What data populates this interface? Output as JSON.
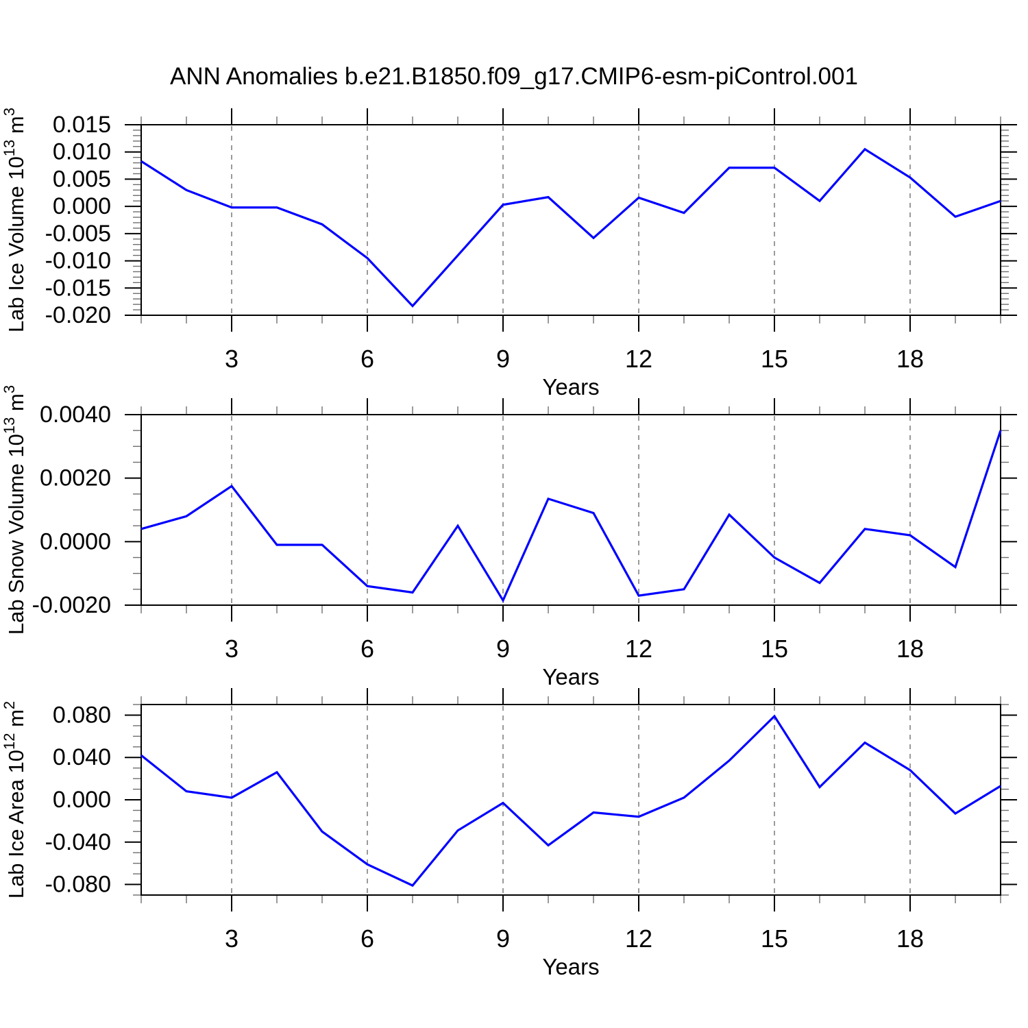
{
  "title": "ANN Anomalies b.e21.B1850.f09_g17.CMIP6-esm-piControl.001",
  "colors": {
    "line": "#0000ff",
    "axis": "#000000",
    "grid": "#787878"
  },
  "chart_data": [
    {
      "type": "line",
      "title": "",
      "ylabel": "Lab Ice Volume 10^13 m^3",
      "ylabel_parts": [
        {
          "t": "Lab Ice Volume 10"
        },
        {
          "t": "13",
          "sup": true
        },
        {
          "t": " m"
        },
        {
          "t": "3",
          "sup": true
        }
      ],
      "xlabel": "Years",
      "x": [
        1,
        2,
        3,
        4,
        5,
        6,
        7,
        8,
        9,
        10,
        11,
        12,
        13,
        14,
        15,
        16,
        17,
        18,
        19,
        20
      ],
      "values": [
        0.0083,
        0.003,
        -0.0002,
        -0.0002,
        -0.0033,
        -0.0095,
        -0.0183,
        -0.009,
        0.0003,
        0.0017,
        -0.0058,
        0.0016,
        -0.0012,
        0.0071,
        0.0071,
        0.001,
        0.0105,
        0.0053,
        -0.0019,
        0.001
      ],
      "xlim": [
        1,
        20
      ],
      "ylim": [
        -0.02,
        0.015
      ],
      "yticks": [
        0.015,
        0.01,
        0.005,
        0.0,
        -0.005,
        -0.01,
        -0.015,
        -0.02
      ],
      "ytick_labels": [
        "0.015",
        "0.010",
        "0.005",
        "0.000",
        "-0.005",
        "-0.010",
        "-0.015",
        "-0.020"
      ],
      "yminor_step": 0.001,
      "xticks": [
        3,
        6,
        9,
        12,
        15,
        18
      ],
      "xtick_labels": [
        "3",
        "6",
        "9",
        "12",
        "15",
        "18"
      ],
      "xminor_step": 1,
      "grid": "x-dashed",
      "line_color": "#0000ff",
      "legend": "none"
    },
    {
      "type": "line",
      "title": "",
      "ylabel": "Lab Snow Volume 10^13 m^3",
      "ylabel_parts": [
        {
          "t": "Lab Snow Volume 10"
        },
        {
          "t": "13",
          "sup": true
        },
        {
          "t": " m"
        },
        {
          "t": "3",
          "sup": true
        }
      ],
      "xlabel": "Years",
      "x": [
        1,
        2,
        3,
        4,
        5,
        6,
        7,
        8,
        9,
        10,
        11,
        12,
        13,
        14,
        15,
        16,
        17,
        18,
        19,
        20
      ],
      "values": [
        0.0004,
        0.0008,
        0.00175,
        -0.0001,
        -0.0001,
        -0.0014,
        -0.0016,
        0.0005,
        -0.00185,
        0.00135,
        0.0009,
        -0.0017,
        -0.0015,
        0.00085,
        -0.0005,
        -0.0013,
        0.0004,
        0.0002,
        -0.0008,
        0.0035
      ],
      "xlim": [
        1,
        20
      ],
      "ylim": [
        -0.002,
        0.004
      ],
      "yticks": [
        0.004,
        0.002,
        0.0,
        -0.002
      ],
      "ytick_labels": [
        "0.0040",
        "0.0020",
        "0.0000",
        "-0.0020"
      ],
      "yminor_step": 0.0005,
      "xticks": [
        3,
        6,
        9,
        12,
        15,
        18
      ],
      "xtick_labels": [
        "3",
        "6",
        "9",
        "12",
        "15",
        "18"
      ],
      "xminor_step": 1,
      "grid": "x-dashed",
      "line_color": "#0000ff",
      "legend": "none"
    },
    {
      "type": "line",
      "title": "",
      "ylabel": "Lab Ice Area 10^12 m^2",
      "ylabel_parts": [
        {
          "t": "Lab Ice Area 10"
        },
        {
          "t": "12",
          "sup": true
        },
        {
          "t": " m"
        },
        {
          "t": "2",
          "sup": true
        }
      ],
      "xlabel": "Years",
      "x": [
        1,
        2,
        3,
        4,
        5,
        6,
        7,
        8,
        9,
        10,
        11,
        12,
        13,
        14,
        15,
        16,
        17,
        18,
        19,
        20
      ],
      "values": [
        0.042,
        0.008,
        0.002,
        0.026,
        -0.03,
        -0.061,
        -0.081,
        -0.029,
        -0.003,
        -0.043,
        -0.012,
        -0.016,
        0.002,
        0.037,
        0.079,
        0.012,
        0.054,
        0.028,
        -0.013,
        0.013
      ],
      "xlim": [
        1,
        20
      ],
      "ylim": [
        -0.09,
        0.09
      ],
      "yticks": [
        0.08,
        0.04,
        0.0,
        -0.04,
        -0.08
      ],
      "ytick_labels": [
        "0.080",
        "0.040",
        "0.000",
        "-0.040",
        "-0.080"
      ],
      "yminor_step": 0.01,
      "xticks": [
        3,
        6,
        9,
        12,
        15,
        18
      ],
      "xtick_labels": [
        "3",
        "6",
        "9",
        "12",
        "15",
        "18"
      ],
      "xminor_step": 1,
      "grid": "x-dashed",
      "line_color": "#0000ff",
      "legend": "none"
    }
  ]
}
